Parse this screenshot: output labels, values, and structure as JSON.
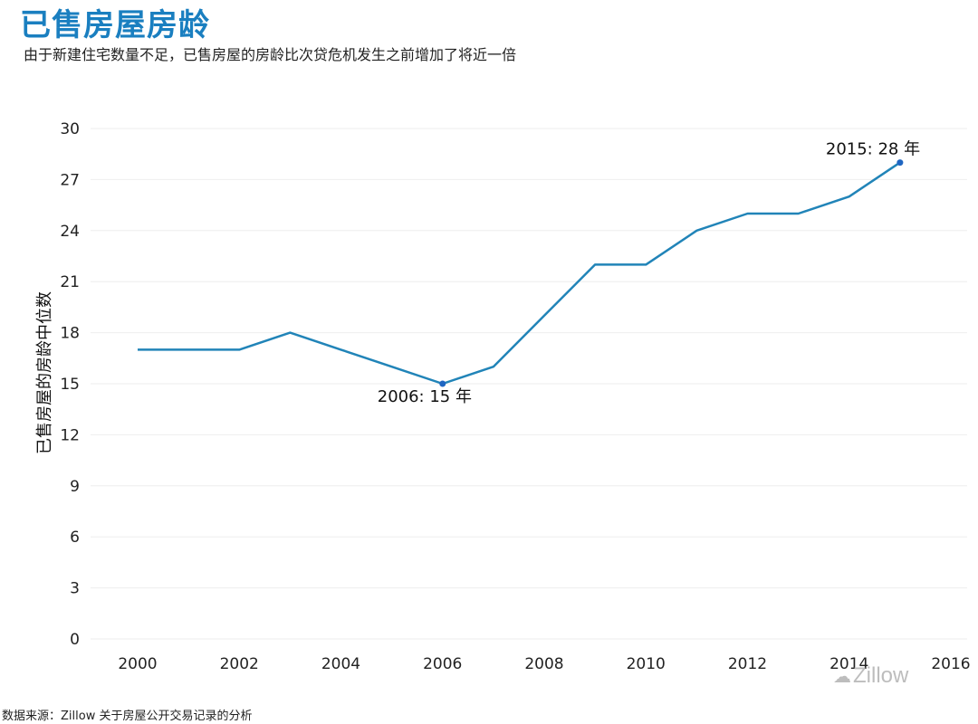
{
  "title": "已售房屋房龄",
  "subtitle": "由于新建住宅数量不足，已售房屋的房龄比次贷危机发生之前增加了将近一倍",
  "source": "数据来源：Zillow 关于房屋公开交易记录的分析",
  "watermark": {
    "icon": "wechat-icon",
    "text": "Zillow"
  },
  "colors": {
    "title": "#1a7fc0",
    "line": "#2184b8",
    "grid": "#eeeeee"
  },
  "chart_data": {
    "type": "line",
    "title": "已售房屋房龄",
    "xlabel": "",
    "ylabel": "已售房屋的房龄中位数",
    "xlim": [
      2000,
      2016
    ],
    "ylim": [
      0,
      30
    ],
    "xticks": [
      2000,
      2002,
      2004,
      2006,
      2008,
      2010,
      2012,
      2014,
      2016
    ],
    "yticks": [
      0,
      3,
      6,
      9,
      12,
      15,
      18,
      21,
      24,
      27,
      30
    ],
    "grid": true,
    "series": [
      {
        "x": [
          2000,
          2001,
          2002,
          2003,
          2004,
          2005,
          2006,
          2007,
          2008,
          2009,
          2010,
          2011,
          2012,
          2013,
          2014,
          2015
        ],
        "values": [
          17,
          17,
          17,
          18,
          17,
          16,
          15,
          16,
          19,
          22,
          22,
          24,
          25,
          25,
          26,
          28
        ]
      }
    ],
    "annotations": [
      {
        "x": 2006,
        "y": 15,
        "text": "2006: 15 年"
      },
      {
        "x": 2015,
        "y": 28,
        "text": "2015: 28 年"
      }
    ]
  }
}
